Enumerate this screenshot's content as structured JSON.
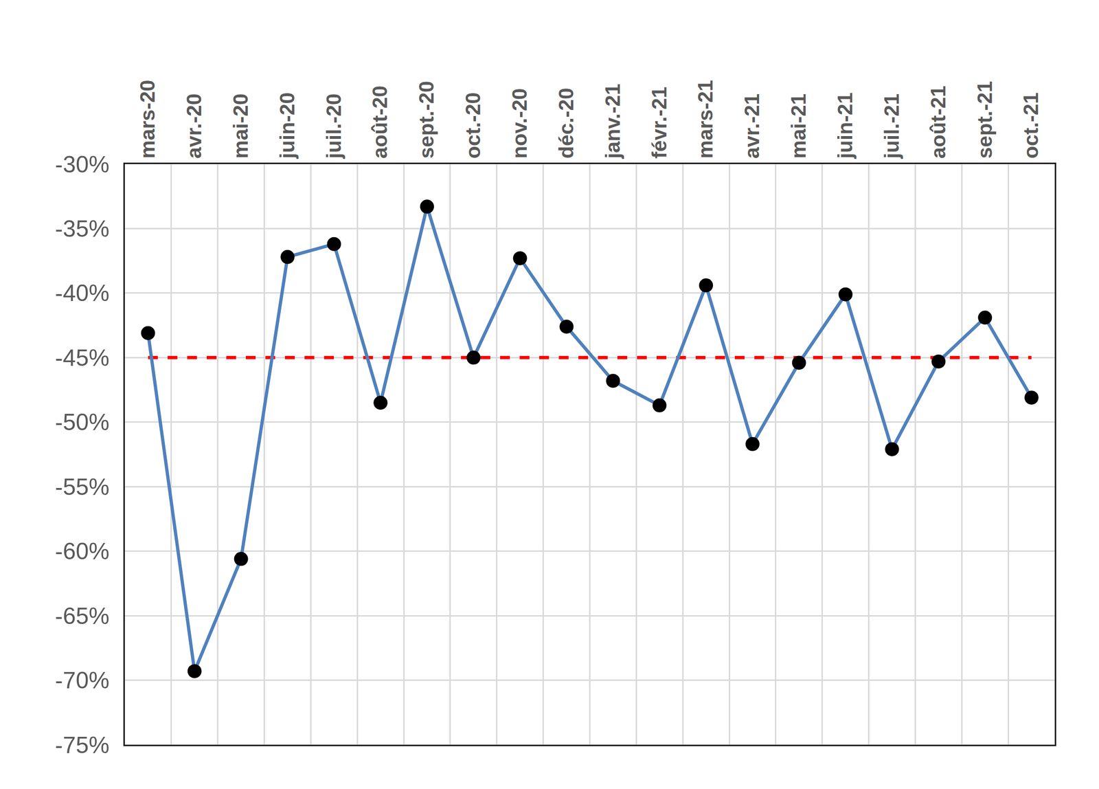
{
  "chart_data": {
    "type": "line",
    "categories": [
      "mars-20",
      "avr.-20",
      "mai-20",
      "juin-20",
      "juil.-20",
      "août-20",
      "sept.-20",
      "oct.-20",
      "nov.-20",
      "déc.-20",
      "janv.-21",
      "févr.-21",
      "mars-21",
      "avr.-21",
      "mai-21",
      "juin-21",
      "juil.-21",
      "août-21",
      "sept.-21",
      "oct.-21"
    ],
    "series": [
      {
        "color": "#ff0000",
        "line_style": "dash",
        "values": [
          -45,
          -45,
          -45,
          -45,
          -45,
          -45,
          -45,
          -45,
          -45,
          -45,
          -45,
          -45,
          -45,
          -45,
          -45,
          -45,
          -45,
          -45,
          -45,
          -45
        ]
      },
      {
        "color": "#4f81bd",
        "marker": "circle",
        "line_style": "solid",
        "values": [
          -43.1,
          -69.3,
          -60.6,
          -37.2,
          -36.2,
          -48.5,
          -33.3,
          -45.0,
          -37.3,
          -42.6,
          -46.8,
          -48.7,
          -39.4,
          -51.7,
          -45.4,
          -40.1,
          -52.1,
          -45.3,
          -41.9,
          -48.1
        ]
      }
    ],
    "ylim": [
      -75,
      -30
    ],
    "yticks": [
      {
        "value": -75,
        "label": "-75%"
      },
      {
        "value": -70,
        "label": "-70%"
      },
      {
        "value": -65,
        "label": "-65%"
      },
      {
        "value": -60,
        "label": "-60%"
      },
      {
        "value": -55,
        "label": "-55%"
      },
      {
        "value": -50,
        "label": "-50%"
      },
      {
        "value": -45,
        "label": "-45%"
      },
      {
        "value": -40,
        "label": "-40%"
      },
      {
        "value": -35,
        "label": "-35%"
      },
      {
        "value": -30,
        "label": "-30%"
      }
    ],
    "grid": true
  }
}
